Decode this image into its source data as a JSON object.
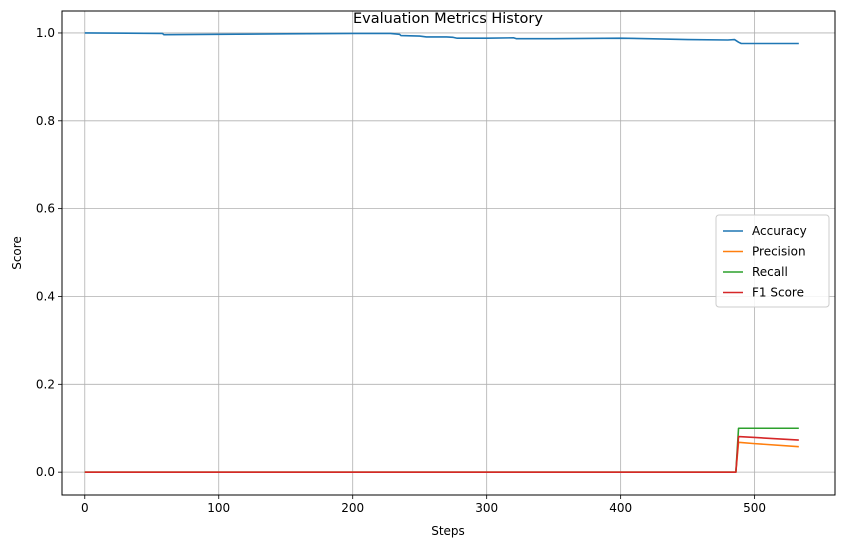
{
  "chart_data": {
    "type": "line",
    "title": "Evaluation Metrics History",
    "xlabel": "Steps",
    "ylabel": "Score",
    "xlim": [
      -17,
      560
    ],
    "ylim": [
      -0.052,
      1.05
    ],
    "xticks": [
      0,
      100,
      200,
      300,
      400,
      500
    ],
    "yticks": [
      0.0,
      0.2,
      0.4,
      0.6,
      0.8,
      1.0
    ],
    "xtick_labels": [
      "0",
      "100",
      "200",
      "300",
      "400",
      "500"
    ],
    "ytick_labels": [
      "0.0",
      "0.2",
      "0.4",
      "0.6",
      "0.8",
      "1.0"
    ],
    "grid": true,
    "legend_position": "center-right",
    "series": [
      {
        "name": "Accuracy",
        "color": "#1f77b4",
        "x": [
          0,
          58,
          59,
          100,
          150,
          200,
          228,
          235,
          236,
          250,
          255,
          270,
          275,
          278,
          300,
          320,
          322,
          345,
          350,
          400,
          420,
          450,
          480,
          485,
          488,
          490,
          500,
          533
        ],
        "y": [
          1.0,
          0.999,
          0.996,
          0.997,
          0.998,
          0.999,
          0.999,
          0.997,
          0.994,
          0.993,
          0.991,
          0.991,
          0.99,
          0.988,
          0.988,
          0.989,
          0.987,
          0.987,
          0.987,
          0.988,
          0.987,
          0.985,
          0.984,
          0.985,
          0.979,
          0.976,
          0.976,
          0.976
        ]
      },
      {
        "name": "Precision",
        "color": "#ff7f0e",
        "x": [
          0,
          486,
          488,
          500,
          533
        ],
        "y": [
          0.0,
          0.0,
          0.068,
          0.065,
          0.058
        ]
      },
      {
        "name": "Recall",
        "color": "#2ca02c",
        "x": [
          0,
          486,
          488,
          533
        ],
        "y": [
          0.0,
          0.0,
          0.1,
          0.1
        ]
      },
      {
        "name": "F1 Score",
        "color": "#d62728",
        "x": [
          0,
          486,
          488,
          500,
          533
        ],
        "y": [
          0.0,
          0.0,
          0.081,
          0.079,
          0.073
        ]
      }
    ]
  }
}
